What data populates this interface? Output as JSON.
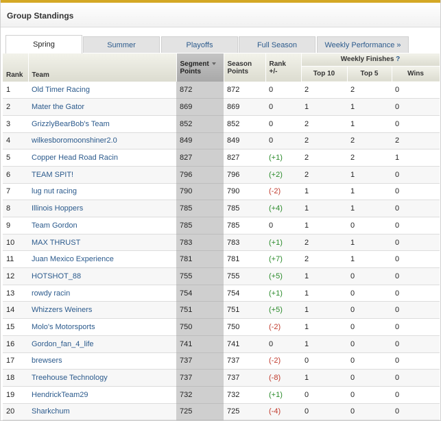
{
  "header": {
    "title": "Group Standings"
  },
  "tabs": [
    {
      "label": "Spring",
      "active": true
    },
    {
      "label": "Summer",
      "active": false
    },
    {
      "label": "Playoffs",
      "active": false
    },
    {
      "label": "Full Season",
      "active": false
    },
    {
      "label": "Weekly Performance »",
      "active": false
    }
  ],
  "columns": {
    "rank": "Rank",
    "team": "Team",
    "segment_line1": "Segment",
    "segment_line2": "Points",
    "season_line1": "Season",
    "season_line2": "Points",
    "rankchg_line1": "Rank",
    "rankchg_line2": "+/-",
    "weekly_group": "Weekly Finishes",
    "weekly_help": "?",
    "top10": "Top 10",
    "top5": "Top 5",
    "wins": "Wins"
  },
  "rows": [
    {
      "rank": "1",
      "team": "Old Timer Racing",
      "segment": "872",
      "season": "872",
      "change": "0",
      "top10": "2",
      "top5": "2",
      "wins": "0"
    },
    {
      "rank": "2",
      "team": "Mater the Gator",
      "segment": "869",
      "season": "869",
      "change": "0",
      "top10": "1",
      "top5": "1",
      "wins": "0"
    },
    {
      "rank": "3",
      "team": "GrizzlyBearBob's Team",
      "segment": "852",
      "season": "852",
      "change": "0",
      "top10": "2",
      "top5": "1",
      "wins": "0"
    },
    {
      "rank": "4",
      "team": "wilkesboromoonshiner2.0",
      "segment": "849",
      "season": "849",
      "change": "0",
      "top10": "2",
      "top5": "2",
      "wins": "2"
    },
    {
      "rank": "5",
      "team": "Copper Head Road Racin",
      "segment": "827",
      "season": "827",
      "change": "(+1)",
      "top10": "2",
      "top5": "2",
      "wins": "1"
    },
    {
      "rank": "6",
      "team": "TEAM SPIT!",
      "segment": "796",
      "season": "796",
      "change": "(+2)",
      "top10": "2",
      "top5": "1",
      "wins": "0"
    },
    {
      "rank": "7",
      "team": "lug nut racing",
      "segment": "790",
      "season": "790",
      "change": "(-2)",
      "top10": "1",
      "top5": "1",
      "wins": "0"
    },
    {
      "rank": "8",
      "team": "Illinois Hoppers",
      "segment": "785",
      "season": "785",
      "change": "(+4)",
      "top10": "1",
      "top5": "1",
      "wins": "0"
    },
    {
      "rank": "9",
      "team": "Team Gordon",
      "segment": "785",
      "season": "785",
      "change": "0",
      "top10": "1",
      "top5": "0",
      "wins": "0"
    },
    {
      "rank": "10",
      "team": "MAX THRUST",
      "segment": "783",
      "season": "783",
      "change": "(+1)",
      "top10": "2",
      "top5": "1",
      "wins": "0"
    },
    {
      "rank": "11",
      "team": "Juan Mexico Experience",
      "segment": "781",
      "season": "781",
      "change": "(+7)",
      "top10": "2",
      "top5": "1",
      "wins": "0"
    },
    {
      "rank": "12",
      "team": "HOTSHOT_88",
      "segment": "755",
      "season": "755",
      "change": "(+5)",
      "top10": "1",
      "top5": "0",
      "wins": "0"
    },
    {
      "rank": "13",
      "team": "rowdy racin",
      "segment": "754",
      "season": "754",
      "change": "(+1)",
      "top10": "1",
      "top5": "0",
      "wins": "0"
    },
    {
      "rank": "14",
      "team": "Whizzers Weiners",
      "segment": "751",
      "season": "751",
      "change": "(+5)",
      "top10": "1",
      "top5": "0",
      "wins": "0"
    },
    {
      "rank": "15",
      "team": "Molo's Motorsports",
      "segment": "750",
      "season": "750",
      "change": "(-2)",
      "top10": "1",
      "top5": "0",
      "wins": "0"
    },
    {
      "rank": "16",
      "team": "Gordon_fan_4_life",
      "segment": "741",
      "season": "741",
      "change": "0",
      "top10": "1",
      "top5": "0",
      "wins": "0"
    },
    {
      "rank": "17",
      "team": "brewsers",
      "segment": "737",
      "season": "737",
      "change": "(-2)",
      "top10": "0",
      "top5": "0",
      "wins": "0"
    },
    {
      "rank": "18",
      "team": "Treehouse Technology",
      "segment": "737",
      "season": "737",
      "change": "(-8)",
      "top10": "1",
      "top5": "0",
      "wins": "0"
    },
    {
      "rank": "19",
      "team": "HendrickTeam29",
      "segment": "732",
      "season": "732",
      "change": "(+1)",
      "top10": "0",
      "top5": "0",
      "wins": "0"
    },
    {
      "rank": "20",
      "team": "Sharkchum",
      "segment": "725",
      "season": "725",
      "change": "(-4)",
      "top10": "0",
      "top5": "0",
      "wins": "0"
    }
  ],
  "colors": {
    "accent": "#d4a825",
    "link": "#2b5a8c",
    "positive": "#2a8a2a",
    "negative": "#c0392b",
    "sorted_column": "#cfcfcf"
  }
}
